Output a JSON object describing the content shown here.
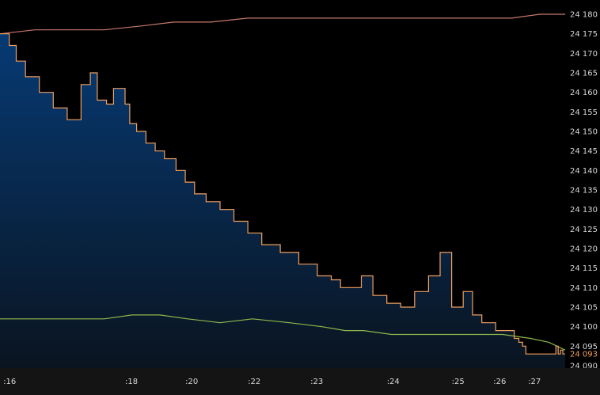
{
  "chart_data": {
    "type": "line",
    "colors": {
      "background": "#000000",
      "price_line": "#f0a060",
      "upper_line": "#c47a6a",
      "lower_line": "#8fb84a",
      "area_top": "#063a74",
      "area_bottom": "#0a1420",
      "current_label": "#f0a060",
      "tick_label": "#d8d8d8",
      "axis_bar": "#141414"
    },
    "ylim": [
      24088,
      24182
    ],
    "y_ticks": [
      24180,
      24175,
      24170,
      24165,
      24160,
      24155,
      24150,
      24145,
      24140,
      24135,
      24130,
      24125,
      24120,
      24115,
      24110,
      24105,
      24100,
      24095,
      24090
    ],
    "y_tick_labels": [
      "24 180",
      "24 175",
      "24 170",
      "24 165",
      "24 160",
      "24 155",
      "24 150",
      "24 145",
      "24 140",
      "24 135",
      "24 130",
      "24 125",
      "24 120",
      "24 115",
      "24 110",
      "24 105",
      "24 100",
      "24 095",
      "24 090"
    ],
    "current_value_label": "24 093",
    "current_value": 24093,
    "xlim": [
      15.75,
      27.95
    ],
    "x_ticks": [
      16,
      18,
      20,
      22,
      23,
      24,
      25,
      26,
      27
    ],
    "x_tick_labels": [
      ":16",
      ":18",
      ":20",
      ":22",
      ":23",
      ":24",
      ":25",
      ":26",
      ":27"
    ],
    "x_tick_positions": [
      15.82,
      18.45,
      19.75,
      21.1,
      22.45,
      24.1,
      25.5,
      26.4,
      27.15
    ],
    "series": [
      {
        "role": "price",
        "x": [
          15.75,
          15.83,
          15.95,
          16.1,
          16.3,
          16.6,
          16.9,
          17.2,
          17.5,
          17.7,
          17.85,
          18.05,
          18.2,
          18.35,
          18.45,
          18.55,
          18.7,
          18.9,
          19.1,
          19.3,
          19.55,
          19.75,
          19.95,
          20.2,
          20.5,
          20.8,
          21.1,
          21.4,
          21.8,
          22.2,
          22.6,
          22.9,
          23.1,
          23.3,
          23.55,
          23.8,
          24.1,
          24.4,
          24.7,
          25.0,
          25.25,
          25.5,
          25.75,
          25.95,
          26.05,
          26.15,
          26.3,
          26.45,
          26.55,
          26.65,
          26.75,
          26.85,
          26.95,
          27.03,
          27.1,
          27.18,
          27.25,
          27.33,
          27.4,
          27.5,
          27.6,
          27.68,
          27.75,
          27.8,
          27.85,
          27.9,
          27.95
        ],
        "y": [
          24175,
          24175,
          24172,
          24168,
          24164,
          24160,
          24156,
          24153,
          24162,
          24165,
          24158,
          24157,
          24161,
          24161,
          24157,
          24152,
          24150,
          24147,
          24145,
          24143,
          24140,
          24137,
          24134,
          24132,
          24130,
          24127,
          24124,
          24121,
          24119,
          24116,
          24113,
          24112,
          24110,
          24110,
          24113,
          24108,
          24106,
          24105,
          24109,
          24113,
          24119,
          24105,
          24109,
          24103,
          24103,
          24101,
          24101,
          24099,
          24099,
          24099,
          24099,
          24097,
          24096,
          24095,
          24093,
          24093,
          24093,
          24093,
          24093,
          24093,
          24093,
          24093,
          24095,
          24093,
          24094,
          24093,
          24093
        ]
      },
      {
        "role": "upper",
        "x": [
          15.75,
          16.5,
          17.2,
          18.0,
          18.8,
          19.5,
          20.3,
          21.1,
          22.0,
          23.0,
          24.0,
          25.0,
          26.0,
          26.8,
          27.4,
          27.95
        ],
        "y": [
          24175,
          24176,
          24176,
          24176,
          24177,
          24178,
          24178,
          24179,
          24179,
          24179,
          24179,
          24179,
          24179,
          24179,
          24180,
          24180
        ]
      },
      {
        "role": "lower",
        "x": [
          15.75,
          16.5,
          17.2,
          18.0,
          18.6,
          19.2,
          19.8,
          20.5,
          21.2,
          22.0,
          22.7,
          23.2,
          23.6,
          24.2,
          25.0,
          25.8,
          26.6,
          27.2,
          27.6,
          27.95
        ],
        "y": [
          24102,
          24102,
          24102,
          24102,
          24103,
          24103,
          24102,
          24101,
          24102,
          24101,
          24100,
          24099,
          24099,
          24098,
          24098,
          24098,
          24098,
          24097,
          24096,
          24094
        ]
      }
    ]
  }
}
